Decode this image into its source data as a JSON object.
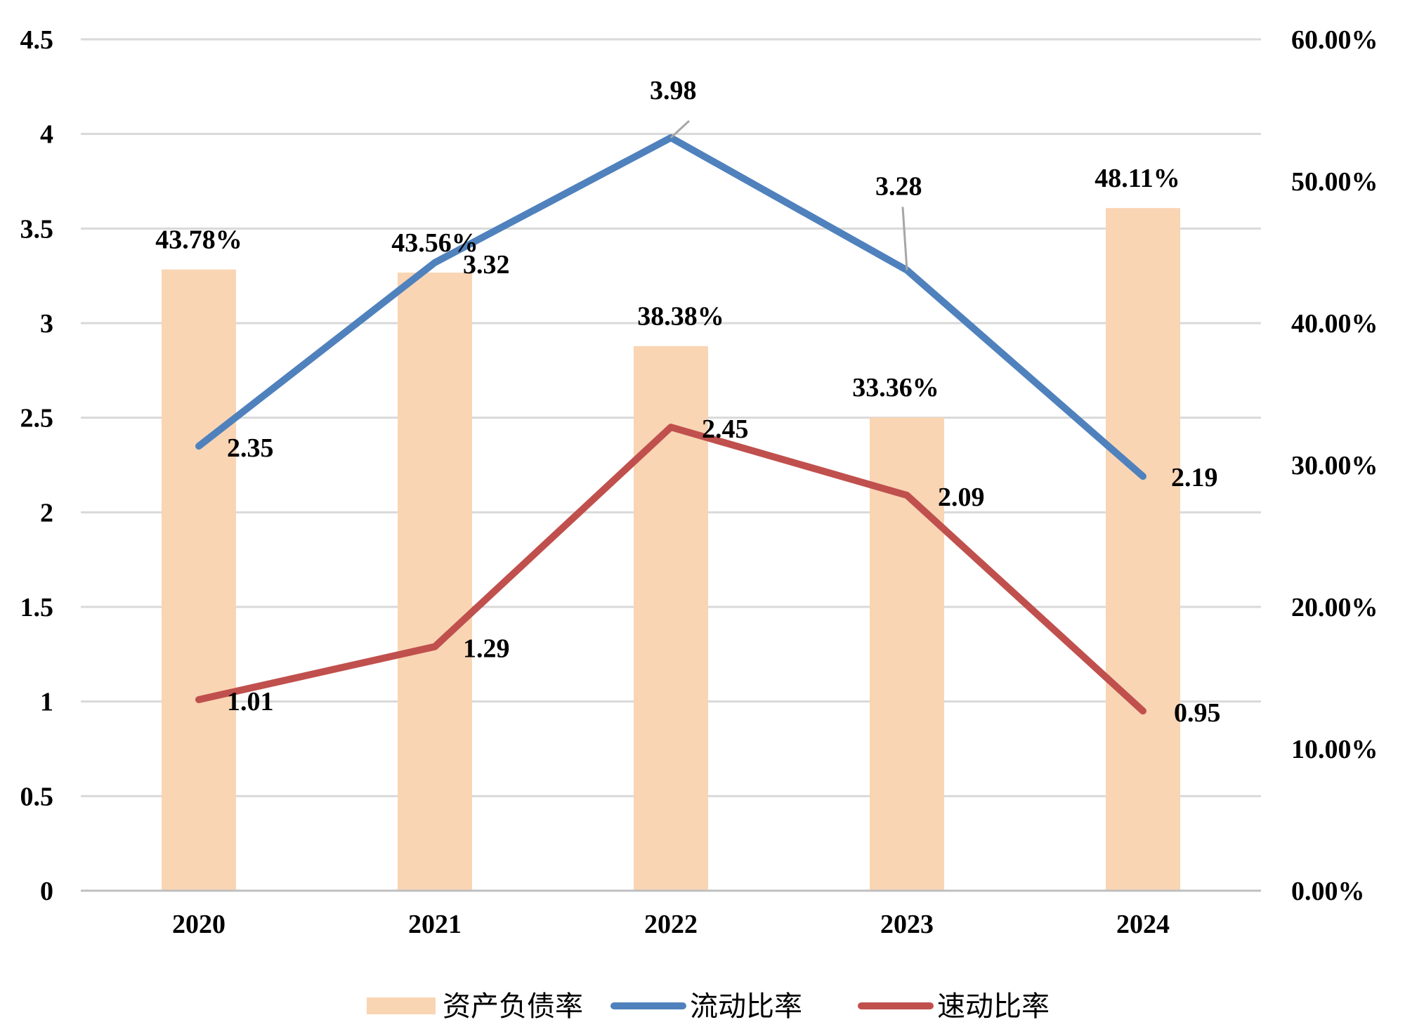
{
  "chart_data": {
    "type": "bar",
    "categories": [
      "2020",
      "2021",
      "2022",
      "2023",
      "2024"
    ],
    "series": [
      {
        "name": "资产负债率",
        "type": "bar",
        "axis": "right",
        "color": "#F9D5B4",
        "values": [
          43.78,
          43.56,
          38.38,
          33.36,
          48.11
        ],
        "labels": [
          "43.78%",
          "43.56%",
          "38.38%",
          "33.36%",
          "48.11%"
        ]
      },
      {
        "name": "流动比率",
        "type": "line",
        "axis": "left",
        "color": "#4F81BD",
        "values": [
          2.35,
          3.32,
          3.98,
          3.28,
          2.19
        ],
        "labels": [
          "2.35",
          "3.32",
          "3.98",
          "3.28",
          "2.19"
        ]
      },
      {
        "name": "速动比率",
        "type": "line",
        "axis": "left",
        "color": "#C0504D",
        "values": [
          1.01,
          1.29,
          2.45,
          2.09,
          0.95
        ],
        "labels": [
          "1.01",
          "1.29",
          "2.45",
          "2.09",
          "0.95"
        ]
      }
    ],
    "y_left": {
      "range": [
        0,
        4.5
      ],
      "ticks": [
        "0",
        "0.5",
        "1",
        "1.5",
        "2",
        "2.5",
        "3",
        "3.5",
        "4",
        "4.5"
      ]
    },
    "y_right": {
      "range": [
        0,
        60
      ],
      "unit": "%",
      "ticks": [
        "0.00%",
        "10.00%",
        "20.00%",
        "30.00%",
        "40.00%",
        "50.00%",
        "60.00%"
      ]
    },
    "grid": true,
    "legend": "bottom"
  }
}
